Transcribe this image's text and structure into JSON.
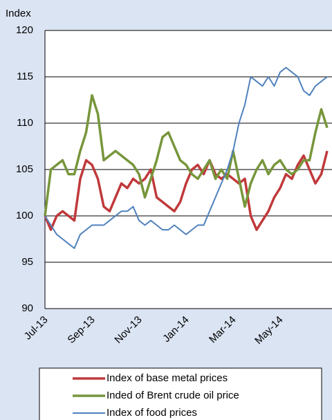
{
  "chart_data": {
    "type": "line",
    "y_label": "Index",
    "categories": [
      "Jul-13",
      null,
      null,
      null,
      null,
      null,
      null,
      null,
      "Sep-13",
      null,
      null,
      null,
      null,
      null,
      null,
      null,
      "Nov-13",
      null,
      null,
      null,
      null,
      null,
      null,
      null,
      "Jan-14",
      null,
      null,
      null,
      null,
      null,
      null,
      null,
      "Mar-14",
      null,
      null,
      null,
      null,
      null,
      null,
      null,
      "May-14",
      null,
      null,
      null,
      null,
      null,
      null,
      null,
      null
    ],
    "series": [
      {
        "name": "Index of base metal prices",
        "color": "#c0393b",
        "values": [
          100,
          98.5,
          100,
          100.5,
          100,
          99.5,
          104,
          106,
          105.5,
          104,
          101,
          100.5,
          102,
          103.5,
          103,
          104,
          103.5,
          104,
          105,
          102,
          101.5,
          101,
          100.5,
          101.5,
          103.5,
          105,
          105.5,
          104.5,
          106,
          104.5,
          104,
          104.5,
          104,
          103.5,
          104,
          100,
          98.5,
          99.5,
          100.5,
          102,
          103,
          104.5,
          104,
          105.5,
          106.5,
          105,
          103.5,
          104.5,
          107
        ]
      },
      {
        "name": "Inded of Brent crude oil price",
        "color": "#77963b",
        "values": [
          100,
          105,
          105.5,
          106,
          104.5,
          104.5,
          107,
          109,
          113,
          111,
          106,
          106.5,
          107,
          106.5,
          106,
          105.5,
          104.5,
          102,
          104,
          106,
          108.5,
          109,
          107.5,
          106,
          105.5,
          104.5,
          104,
          105,
          106,
          104,
          105,
          104,
          107,
          104,
          101,
          103.5,
          105,
          106,
          104.5,
          105.5,
          106,
          105,
          104.5,
          105,
          106,
          106,
          109,
          111.5,
          109.5
        ]
      },
      {
        "name": "Index of food prices",
        "color": "#4f81bd",
        "values": [
          100,
          99,
          98,
          97.5,
          97,
          96.5,
          98,
          98.5,
          99,
          99,
          99,
          99.5,
          100,
          100.5,
          100.5,
          101,
          99.5,
          99,
          99.5,
          99,
          98.5,
          98.5,
          99,
          98.5,
          98,
          98.5,
          99,
          99,
          100.5,
          102,
          103.5,
          105,
          107,
          110,
          112,
          115,
          114.5,
          114,
          115,
          114,
          115.5,
          116,
          115.5,
          115,
          113.5,
          113,
          114,
          114.5,
          115
        ]
      }
    ],
    "ylim": [
      90,
      120
    ],
    "yticks": [
      90,
      95,
      100,
      105,
      110,
      115,
      120
    ],
    "grid": true
  }
}
